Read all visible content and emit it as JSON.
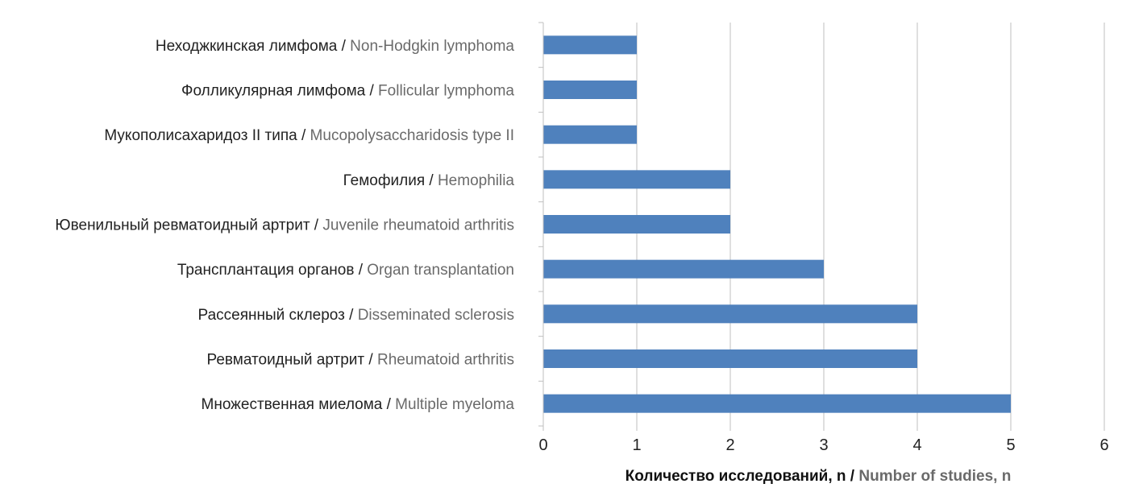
{
  "chart_data": {
    "type": "bar",
    "orientation": "horizontal",
    "categories": [
      {
        "ru": "Неходжкинская лимфома",
        "en": "Non-Hodgkin lymphoma"
      },
      {
        "ru": "Фолликулярная лимфома",
        "en": "Follicular lymphoma"
      },
      {
        "ru": "Мукополисахаридоз II типа",
        "en": "Mucopolysaccharidosis type II"
      },
      {
        "ru": "Гемофилия",
        "en": "Hemophilia"
      },
      {
        "ru": "Ювенильный ревматоидный артрит",
        "en": "Juvenile rheumatoid arthritis"
      },
      {
        "ru": "Трансплантация органов",
        "en": "Organ transplantation"
      },
      {
        "ru": "Рассеянный склероз",
        "en": "Disseminated sclerosis"
      },
      {
        "ru": "Ревматоидный артрит",
        "en": "Rheumatoid arthritis"
      },
      {
        "ru": "Множественная миелома",
        "en": "Multiple myeloma"
      }
    ],
    "values": [
      1,
      1,
      1,
      2,
      2,
      3,
      4,
      4,
      5
    ],
    "xlim": [
      0,
      6
    ],
    "xticks": [
      "0",
      "1",
      "2",
      "3",
      "4",
      "5",
      "6"
    ],
    "xlabel": {
      "ru": "Количество исследований, n",
      "en": "Number of studies, n"
    },
    "label_separator": " / ",
    "grid": "vertical",
    "bar_color": "#4f81bd",
    "grid_color": "#bfbfbf"
  }
}
